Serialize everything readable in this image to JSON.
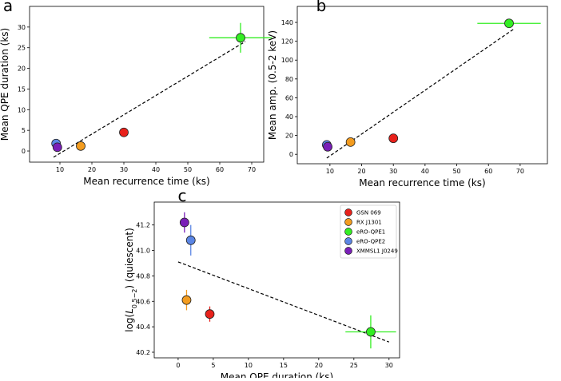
{
  "chart_data": [
    {
      "type": "scatter",
      "label": "a",
      "x_label": "Mean recurrence time (ks)",
      "y_label": "Mean QPE duration (ks)",
      "xlim": [
        0.5,
        73.75
      ],
      "ylim": [
        -2.7,
        35
      ],
      "xticks": [
        10,
        20,
        30,
        40,
        50,
        60,
        70
      ],
      "yticks": [
        0,
        5,
        10,
        15,
        20,
        25,
        30
      ],
      "series": [
        {
          "name": "GSN 069",
          "color": "#e8211b",
          "x": [
            30
          ],
          "values": [
            4.5
          ],
          "xerr": [
            null
          ],
          "yerr": [
            null
          ]
        },
        {
          "name": "RX J1301",
          "color": "#f39c1f",
          "x": [
            16.5
          ],
          "values": [
            1.2
          ],
          "xerr": [
            null
          ],
          "yerr": [
            null
          ]
        },
        {
          "name": "eRO-QPE1",
          "color": "#33ee22",
          "x": [
            66.5
          ],
          "values": [
            27.4
          ],
          "xerr": [
            9.8
          ],
          "yerr": [
            3.6
          ]
        },
        {
          "name": "eRO-QPE2",
          "color": "#5b86e5",
          "x": [
            8.8
          ],
          "values": [
            1.8
          ],
          "xerr": [
            null
          ],
          "yerr": [
            null
          ]
        },
        {
          "name": "XMMSL1 J0249",
          "color": "#7a1fb8",
          "x": [
            9.2
          ],
          "values": [
            0.9
          ],
          "xerr": [
            null
          ],
          "yerr": [
            null
          ]
        }
      ],
      "fit": {
        "x": [
          8,
          68
        ],
        "y": [
          -1.5,
          26.5
        ]
      }
    },
    {
      "type": "scatter",
      "label": "b",
      "x_label": "Mean recurrence time (ks)",
      "y_label": "Mean amp. (0.5-2 keV)",
      "xlim": [
        -0.3,
        78.6
      ],
      "ylim": [
        -10,
        157
      ],
      "xticks": [
        10,
        20,
        30,
        40,
        50,
        60,
        70
      ],
      "yticks": [
        0,
        20,
        40,
        60,
        80,
        100,
        120,
        140
      ],
      "series": [
        {
          "name": "GSN 069",
          "color": "#e8211b",
          "x": [
            30
          ],
          "values": [
            17
          ],
          "xerr": [
            null
          ],
          "yerr": [
            null
          ]
        },
        {
          "name": "RX J1301",
          "color": "#f39c1f",
          "x": [
            16.5
          ],
          "values": [
            13
          ],
          "xerr": [
            null
          ],
          "yerr": [
            null
          ]
        },
        {
          "name": "eRO-QPE1",
          "color": "#33ee22",
          "x": [
            66.5
          ],
          "values": [
            139
          ],
          "xerr": [
            10
          ],
          "yerr": [
            null
          ]
        },
        {
          "name": "eRO-QPE2",
          "color": "#5b86e5",
          "x": [
            9
          ],
          "values": [
            10
          ],
          "xerr": [
            null
          ],
          "yerr": [
            null
          ]
        },
        {
          "name": "XMMSL1 J0249",
          "color": "#7a1fb8",
          "x": [
            9.3
          ],
          "values": [
            8
          ],
          "xerr": [
            null
          ],
          "yerr": [
            null
          ]
        }
      ],
      "fit": {
        "x": [
          9,
          68
        ],
        "y": [
          -4,
          133
        ]
      }
    },
    {
      "type": "scatter",
      "label": "c",
      "x_label": "Mean QPE duration (ks)",
      "y_label_parts": [
        "log(",
        "L",
        "0.5−2",
        ") (quiescent)"
      ],
      "xlim": [
        -3.4,
        31.5
      ],
      "ylim": [
        40.156,
        41.38
      ],
      "xticks": [
        0,
        5,
        10,
        15,
        20,
        25,
        30
      ],
      "yticks": [
        {
          "value": 40.2,
          "label": "40.2"
        },
        {
          "value": 40.4,
          "label": "40.4"
        },
        {
          "value": 40.6,
          "label": "40.6"
        },
        {
          "value": 40.8,
          "label": "40.8"
        },
        {
          "value": 41.0,
          "label": "41.0"
        },
        {
          "value": 41.2,
          "label": "41.2"
        }
      ],
      "legend": "upper right",
      "series": [
        {
          "name": "GSN 069",
          "color": "#e8211b",
          "x": [
            4.5
          ],
          "values": [
            40.5
          ],
          "xerr": [
            null
          ],
          "yerr": [
            0.06
          ]
        },
        {
          "name": "RX J1301",
          "color": "#f39c1f",
          "x": [
            1.2
          ],
          "values": [
            40.61
          ],
          "xerr": [
            null
          ],
          "yerr": [
            0.08
          ]
        },
        {
          "name": "eRO-QPE1",
          "color": "#33ee22",
          "x": [
            27.4
          ],
          "values": [
            40.36
          ],
          "xerr": [
            3.6
          ],
          "yerr": [
            0.13
          ]
        },
        {
          "name": "eRO-QPE2",
          "color": "#5b86e5",
          "x": [
            1.8
          ],
          "values": [
            41.08
          ],
          "xerr": [
            null
          ],
          "yerr": [
            0.12
          ]
        },
        {
          "name": "XMMSL1 J0249",
          "color": "#7a1fb8",
          "x": [
            0.9
          ],
          "values": [
            41.22
          ],
          "xerr": [
            null
          ],
          "yerr": [
            0.08
          ]
        }
      ],
      "fit": {
        "x": [
          0,
          30
        ],
        "y": [
          40.91,
          40.28
        ]
      }
    }
  ]
}
